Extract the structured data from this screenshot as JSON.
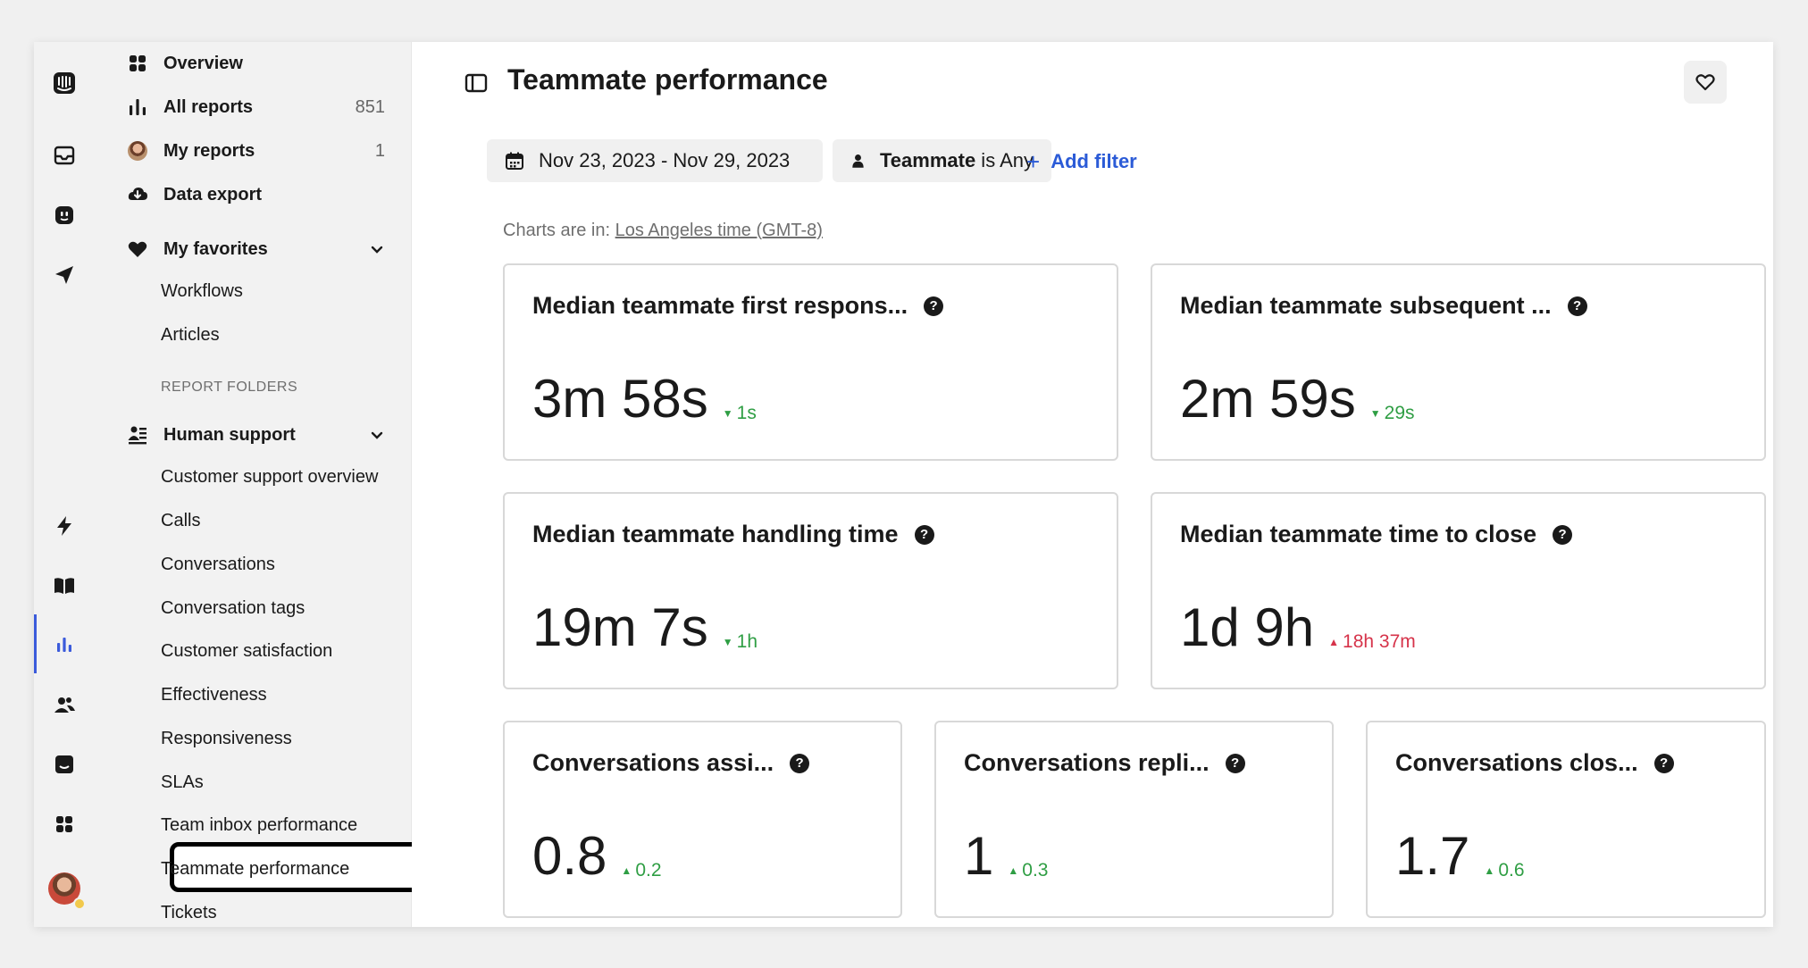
{
  "sidebar": {
    "nav": [
      {
        "label": "Overview",
        "icon": "grid-icon"
      },
      {
        "label": "All reports",
        "icon": "bar-chart-icon",
        "count": "851"
      },
      {
        "label": "My reports",
        "icon": "avatar",
        "count": "1"
      },
      {
        "label": "Data export",
        "icon": "cloud-download-icon"
      }
    ],
    "favorites": {
      "label": "My favorites",
      "icon": "heart-icon",
      "items": [
        "Workflows",
        "Articles"
      ]
    },
    "section_label": "REPORT FOLDERS",
    "folder": {
      "label": "Human support",
      "icon": "people-list-icon",
      "items": [
        "Customer support overview",
        "Calls",
        "Conversations",
        "Conversation tags",
        "Customer satisfaction",
        "Effectiveness",
        "Responsiveness",
        "SLAs",
        "Team inbox performance",
        "Teammate performance",
        "Tickets"
      ],
      "selected": "Teammate performance"
    }
  },
  "rail_icons": [
    "intercom-logo-icon",
    "inbox-icon",
    "bot-icon",
    "send-icon",
    "lightning-icon",
    "book-icon",
    "reports-icon",
    "contacts-icon",
    "messages-icon",
    "apps-icon"
  ],
  "header": {
    "title": "Teammate performance",
    "favorite_icon": "heart-outline-icon",
    "panel_icon": "sidebar-toggle-icon"
  },
  "filters": {
    "date_range": "Nov 23, 2023 - Nov 29, 2023",
    "teammate_key": "Teammate",
    "teammate_value": " is Any",
    "add_filter": "Add filter"
  },
  "timezone": {
    "prefix": "Charts are in: ",
    "zone": "Los Angeles time (GMT-8)"
  },
  "metrics": [
    {
      "title": "Median teammate first respons...",
      "value": "3m 58s",
      "delta": "1s",
      "direction": "down",
      "status": "good"
    },
    {
      "title": "Median teammate subsequent ...",
      "value": "2m 59s",
      "delta": "29s",
      "direction": "down",
      "status": "good"
    },
    {
      "title": "Median teammate handling time",
      "value": "19m 7s",
      "delta": "1h",
      "direction": "down",
      "status": "good"
    },
    {
      "title": "Median teammate time to close",
      "value": "1d 9h",
      "delta": "18h 37m",
      "direction": "up",
      "status": "bad"
    },
    {
      "title": "Conversations assi...",
      "value": "0.8",
      "delta": "0.2",
      "direction": "up",
      "status": "good"
    },
    {
      "title": "Conversations repli...",
      "value": "1",
      "delta": "0.3",
      "direction": "up",
      "status": "good"
    },
    {
      "title": "Conversations clos...",
      "value": "1.7",
      "delta": "0.6",
      "direction": "up",
      "status": "good"
    }
  ],
  "colors": {
    "good": "#2f9e44",
    "bad": "#d6334a",
    "link": "#2b5bd7",
    "active_rail": "#3b5bdb"
  }
}
